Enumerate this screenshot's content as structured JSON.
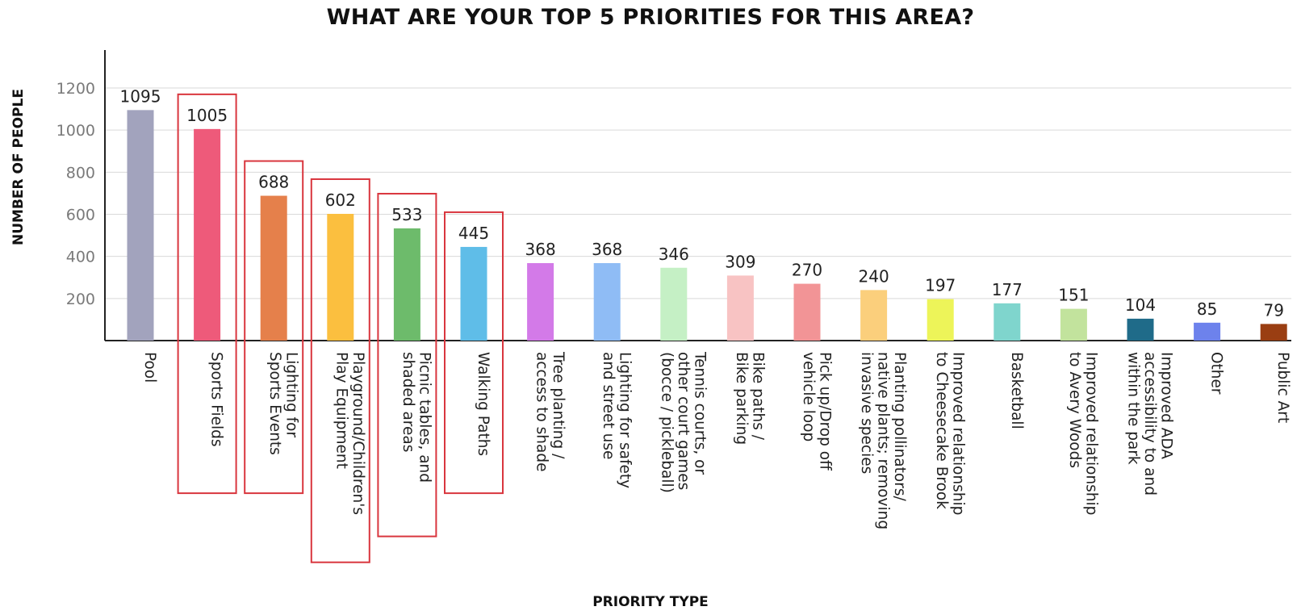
{
  "chart_data": {
    "type": "bar",
    "title": "WHAT ARE YOUR TOP 5 PRIORITIES FOR THIS AREA?",
    "xlabel": "PRIORITY TYPE",
    "ylabel": "NUMBER OF PEOPLE",
    "ylim": [
      0,
      1200
    ],
    "yticks": [
      "200",
      "400",
      "600",
      "800",
      "1000",
      "1200"
    ],
    "grid": "horizontal",
    "categories": [
      [
        "Pool"
      ],
      [
        "Sports Fields"
      ],
      [
        "Lighting for",
        "Sports Events"
      ],
      [
        "Playground/Children's",
        "Play Equipment"
      ],
      [
        "Picnic tables, and",
        "shaded areas"
      ],
      [
        "Walking Paths"
      ],
      [
        "Tree planting /",
        "access to shade"
      ],
      [
        "Lighting for safety",
        "and street use"
      ],
      [
        "Tennis courts, or",
        "other court games",
        "(bocce / pickleball)"
      ],
      [
        "Bike paths /",
        "Bike parking"
      ],
      [
        "Pick up/Drop off",
        "vehicle loop"
      ],
      [
        "Planting pollinators/",
        "native plants; removing",
        "invasive species"
      ],
      [
        "Improved relationship",
        "to Cheesecake Brook"
      ],
      [
        "Basketball"
      ],
      [
        "Improved relationship",
        "to Avery Woods"
      ],
      [
        "Improved ADA",
        "accessibility to and",
        "within the park"
      ],
      [
        "Other"
      ],
      [
        "Public Art"
      ]
    ],
    "values": [
      1095,
      1005,
      688,
      602,
      533,
      445,
      368,
      368,
      346,
      309,
      270,
      240,
      197,
      177,
      151,
      104,
      85,
      79
    ],
    "colors": [
      "#a2a3bd",
      "#ee5a7a",
      "#e5804b",
      "#fbbf3f",
      "#6dbb6b",
      "#5fbde8",
      "#d37ae8",
      "#8fbcf5",
      "#c5f0c5",
      "#f8c3c3",
      "#f29496",
      "#fbcf7c",
      "#edf459",
      "#7fd5cd",
      "#c2e39d",
      "#1f6b89",
      "#6d82ec",
      "#9a3e12"
    ],
    "highlighted": [
      "Sports Fields",
      "Lighting for Sports Events",
      "Playground/Children's Play Equipment",
      "Picnic tables, and shaded areas",
      "Walking Paths"
    ],
    "highlight_color": "#d9363e"
  }
}
